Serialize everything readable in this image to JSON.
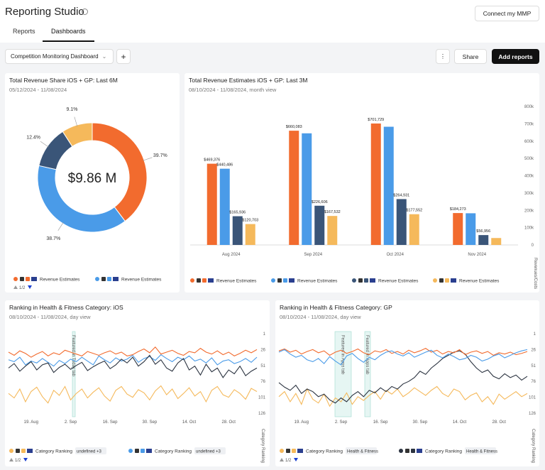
{
  "header": {
    "title": "Reporting Studio",
    "tabs": [
      "Reports",
      "Dashboards"
    ],
    "connect_button": "Connect my MMP"
  },
  "toolbar": {
    "dashboard": "Competition Monitoring Dashboard",
    "share": "Share",
    "add_reports": "Add reports"
  },
  "chart_data": [
    {
      "type": "pie",
      "donut": true,
      "title": "Total Revenue Share iOS + GP: Last 6M",
      "subtitle": "05/12/2024 - 11/08/2024",
      "center_label": "$9.86 M",
      "values": [
        39.7,
        38.7,
        12.4,
        9.1
      ],
      "value_labels": [
        "39.7%",
        "38.7%",
        "12.4%",
        "9.1%"
      ],
      "colors": [
        "#f26b2e",
        "#4a9be8",
        "#3a5578",
        "#f5b95b"
      ],
      "legend": [
        {
          "name": "Revenue Estimates",
          "color": "#f26b2e"
        },
        {
          "name": "Revenue Estimates",
          "color": "#4a9be8"
        }
      ],
      "legend_page": "1/2"
    },
    {
      "type": "bar",
      "title": "Total Revenue Estimates iOS + GP: Last 3M",
      "subtitle": "08/10/2024 - 11/08/2024, month view",
      "y_axis_title": "Revenues/Costs",
      "categories": [
        "Aug 2024",
        "Sep 2024",
        "Oct 2024",
        "Nov 2024"
      ],
      "series": [
        {
          "name": "Revenue Estimates",
          "color": "#f26b2e",
          "values": [
            469376,
            660083,
            701729,
            184273
          ],
          "value_labels": [
            "$469,376",
            "$660,083",
            "$701,729",
            "$184,273"
          ]
        },
        {
          "name": "Revenue Estimates",
          "color": "#4a9be8",
          "values": [
            440486,
            645000,
            683000,
            183000
          ],
          "value_labels": [
            "$440,486",
            null,
            null,
            null
          ]
        },
        {
          "name": "Revenue Estimates",
          "color": "#3a5578",
          "values": [
            165936,
            226606,
            264931,
            56956
          ],
          "value_labels": [
            "$165,936",
            "$226,606",
            "$264,931",
            "$56,956"
          ]
        },
        {
          "name": "Revenue Estimates",
          "color": "#f5b95b",
          "values": [
            120703,
            167532,
            177552,
            40000
          ],
          "value_labels": [
            "$120,703",
            "$167,532",
            "$177,552",
            null
          ]
        }
      ],
      "ylim": [
        0,
        800000
      ],
      "yticks": [
        0,
        {
          "value": 100000,
          "label": "100k"
        },
        {
          "value": 200000,
          "label": "200k"
        },
        {
          "value": 300000,
          "label": "300k"
        },
        {
          "value": 400000,
          "label": "400k"
        },
        {
          "value": 500000,
          "label": "500k"
        },
        {
          "value": 600000,
          "label": "600k"
        },
        {
          "value": 700000,
          "label": "700k"
        },
        {
          "value": 800000,
          "label": "800k"
        }
      ],
      "grid": false
    },
    {
      "type": "line",
      "title": "Ranking in Health & Fitness Category: iOS",
      "subtitle": "08/10/2024 - 11/08/2024, day view",
      "y_axis_title": "Category Ranking",
      "annotations": [
        "Featured in Today tab"
      ],
      "categories": [
        null,
        null,
        null,
        null,
        "19. Aug",
        null,
        null,
        null,
        null,
        null,
        null,
        "2. Sep",
        null,
        null,
        null,
        null,
        null,
        null,
        "16. Sep",
        null,
        null,
        null,
        null,
        null,
        null,
        "30. Sep",
        null,
        null,
        null,
        null,
        null,
        null,
        "14. Oct",
        null,
        null,
        null,
        null,
        null,
        null,
        "28. Oct",
        null,
        null,
        null,
        null,
        null
      ],
      "series": [
        {
          "name": "Category Ranking",
          "tag": "undefined +3",
          "color": "#f5b95b",
          "values": [
            95,
            102,
            88,
            108,
            92,
            85,
            100,
            110,
            90,
            98,
            84,
            105,
            95,
            88,
            102,
            93,
            86,
            99,
            107,
            90,
            84,
            96,
            101,
            89,
            94,
            105,
            91,
            83,
            97,
            88,
            103,
            95,
            86,
            99,
            92,
            108,
            90,
            84,
            97,
            101,
            89,
            95,
            104,
            87,
            92
          ]
        },
        {
          "name": "Category Ranking",
          "tag": "undefined +3",
          "color": "#4a9be8",
          "values": [
            42,
            45,
            38,
            50,
            44,
            47,
            40,
            46,
            52,
            43,
            48,
            41,
            45,
            38,
            44,
            50,
            36,
            42,
            47,
            39,
            44,
            41,
            35,
            46,
            40,
            37,
            43,
            34,
            40,
            45,
            38,
            42,
            36,
            44,
            41,
            47,
            39,
            50,
            44,
            42,
            48,
            45,
            40,
            46,
            38
          ]
        },
        {
          "color": "#f26b2e",
          "values": [
            30,
            35,
            28,
            32,
            38,
            33,
            29,
            36,
            31,
            34,
            27,
            30,
            33,
            36,
            29,
            32,
            35,
            31,
            28,
            33,
            30,
            36,
            34,
            29,
            25,
            31,
            22,
            33,
            30,
            27,
            32,
            35,
            29,
            31,
            24,
            30,
            33,
            28,
            34,
            30,
            36,
            32,
            27,
            31,
            26
          ]
        },
        {
          "color": "#2b3340",
          "values": [
            55,
            48,
            60,
            52,
            45,
            58,
            50,
            47,
            62,
            54,
            49,
            57,
            51,
            46,
            59,
            53,
            48,
            44,
            56,
            50,
            41,
            47,
            38,
            52,
            45,
            35,
            49,
            42,
            55,
            60,
            47,
            40,
            58,
            52,
            66,
            49,
            61,
            55,
            70,
            58,
            64,
            52,
            67,
            60,
            55
          ]
        }
      ],
      "ylim": [
        1,
        126
      ],
      "y_reversed": true,
      "yticks": [
        1,
        26,
        51,
        76,
        101,
        126
      ],
      "legend_page": "1/2"
    },
    {
      "type": "line",
      "title": "Ranking in Health & Fitness Category: GP",
      "subtitle": "08/10/2024 - 11/08/2024, day view",
      "y_axis_title": "Category Ranking",
      "annotations": [
        "Featured in Apps tab",
        "Featured in Apps tab"
      ],
      "categories": [
        null,
        null,
        null,
        null,
        "19. Aug",
        null,
        null,
        null,
        null,
        null,
        null,
        "2. Sep",
        null,
        null,
        null,
        null,
        null,
        null,
        "16. Sep",
        null,
        null,
        null,
        null,
        null,
        null,
        "30. Sep",
        null,
        null,
        null,
        null,
        null,
        null,
        "14. Oct",
        null,
        null,
        null,
        null,
        null,
        null,
        "28. Oct",
        null,
        null,
        null,
        null,
        null
      ],
      "series": [
        {
          "name": "Category Ranking",
          "tag": "Health & Fitness",
          "color": "#f5b95b",
          "values": [
            100,
            92,
            108,
            95,
            112,
            88,
            104,
            110,
            96,
            115,
            102,
            108,
            94,
            112,
            100,
            106,
            98,
            92,
            104,
            90,
            96,
            88,
            100,
            94,
            86,
            92,
            98,
            90,
            84,
            95,
            100,
            88,
            92,
            105,
            98,
            94,
            108,
            100,
            112,
            96,
            104,
            98,
            92,
            100,
            95
          ]
        },
        {
          "name": "Category Ranking",
          "tag": "Health & Fitness",
          "color": "#2b3340",
          "values": [
            78,
            85,
            90,
            82,
            95,
            88,
            92,
            100,
            96,
            105,
            110,
            102,
            108,
            98,
            92,
            100,
            90,
            94,
            86,
            92,
            84,
            88,
            80,
            76,
            70,
            60,
            65,
            55,
            48,
            40,
            35,
            30,
            28,
            33,
            45,
            55,
            62,
            58,
            68,
            72,
            64,
            70,
            66,
            74,
            68
          ]
        },
        {
          "color": "#f26b2e",
          "values": [
            28,
            25,
            30,
            27,
            33,
            29,
            26,
            31,
            28,
            35,
            30,
            27,
            32,
            29,
            25,
            31,
            34,
            28,
            30,
            26,
            32,
            29,
            33,
            27,
            31,
            28,
            24,
            30,
            27,
            33,
            29,
            31,
            26,
            34,
            30,
            28,
            32,
            29,
            35,
            31,
            33,
            30,
            34,
            32,
            29
          ]
        },
        {
          "color": "#4a9be8",
          "values": [
            30,
            26,
            33,
            38,
            35,
            42,
            45,
            40,
            48,
            37,
            44,
            50,
            36,
            32,
            40,
            46,
            38,
            42,
            35,
            30,
            28,
            33,
            36,
            31,
            38,
            34,
            30,
            27,
            35,
            39,
            33,
            37,
            42,
            40,
            35,
            38,
            44,
            41,
            36,
            33,
            39,
            35,
            31,
            28,
            26
          ]
        }
      ],
      "ylim": [
        1,
        126
      ],
      "y_reversed": true,
      "yticks": [
        1,
        26,
        51,
        76,
        101,
        126
      ],
      "legend_page": "1/2"
    }
  ]
}
